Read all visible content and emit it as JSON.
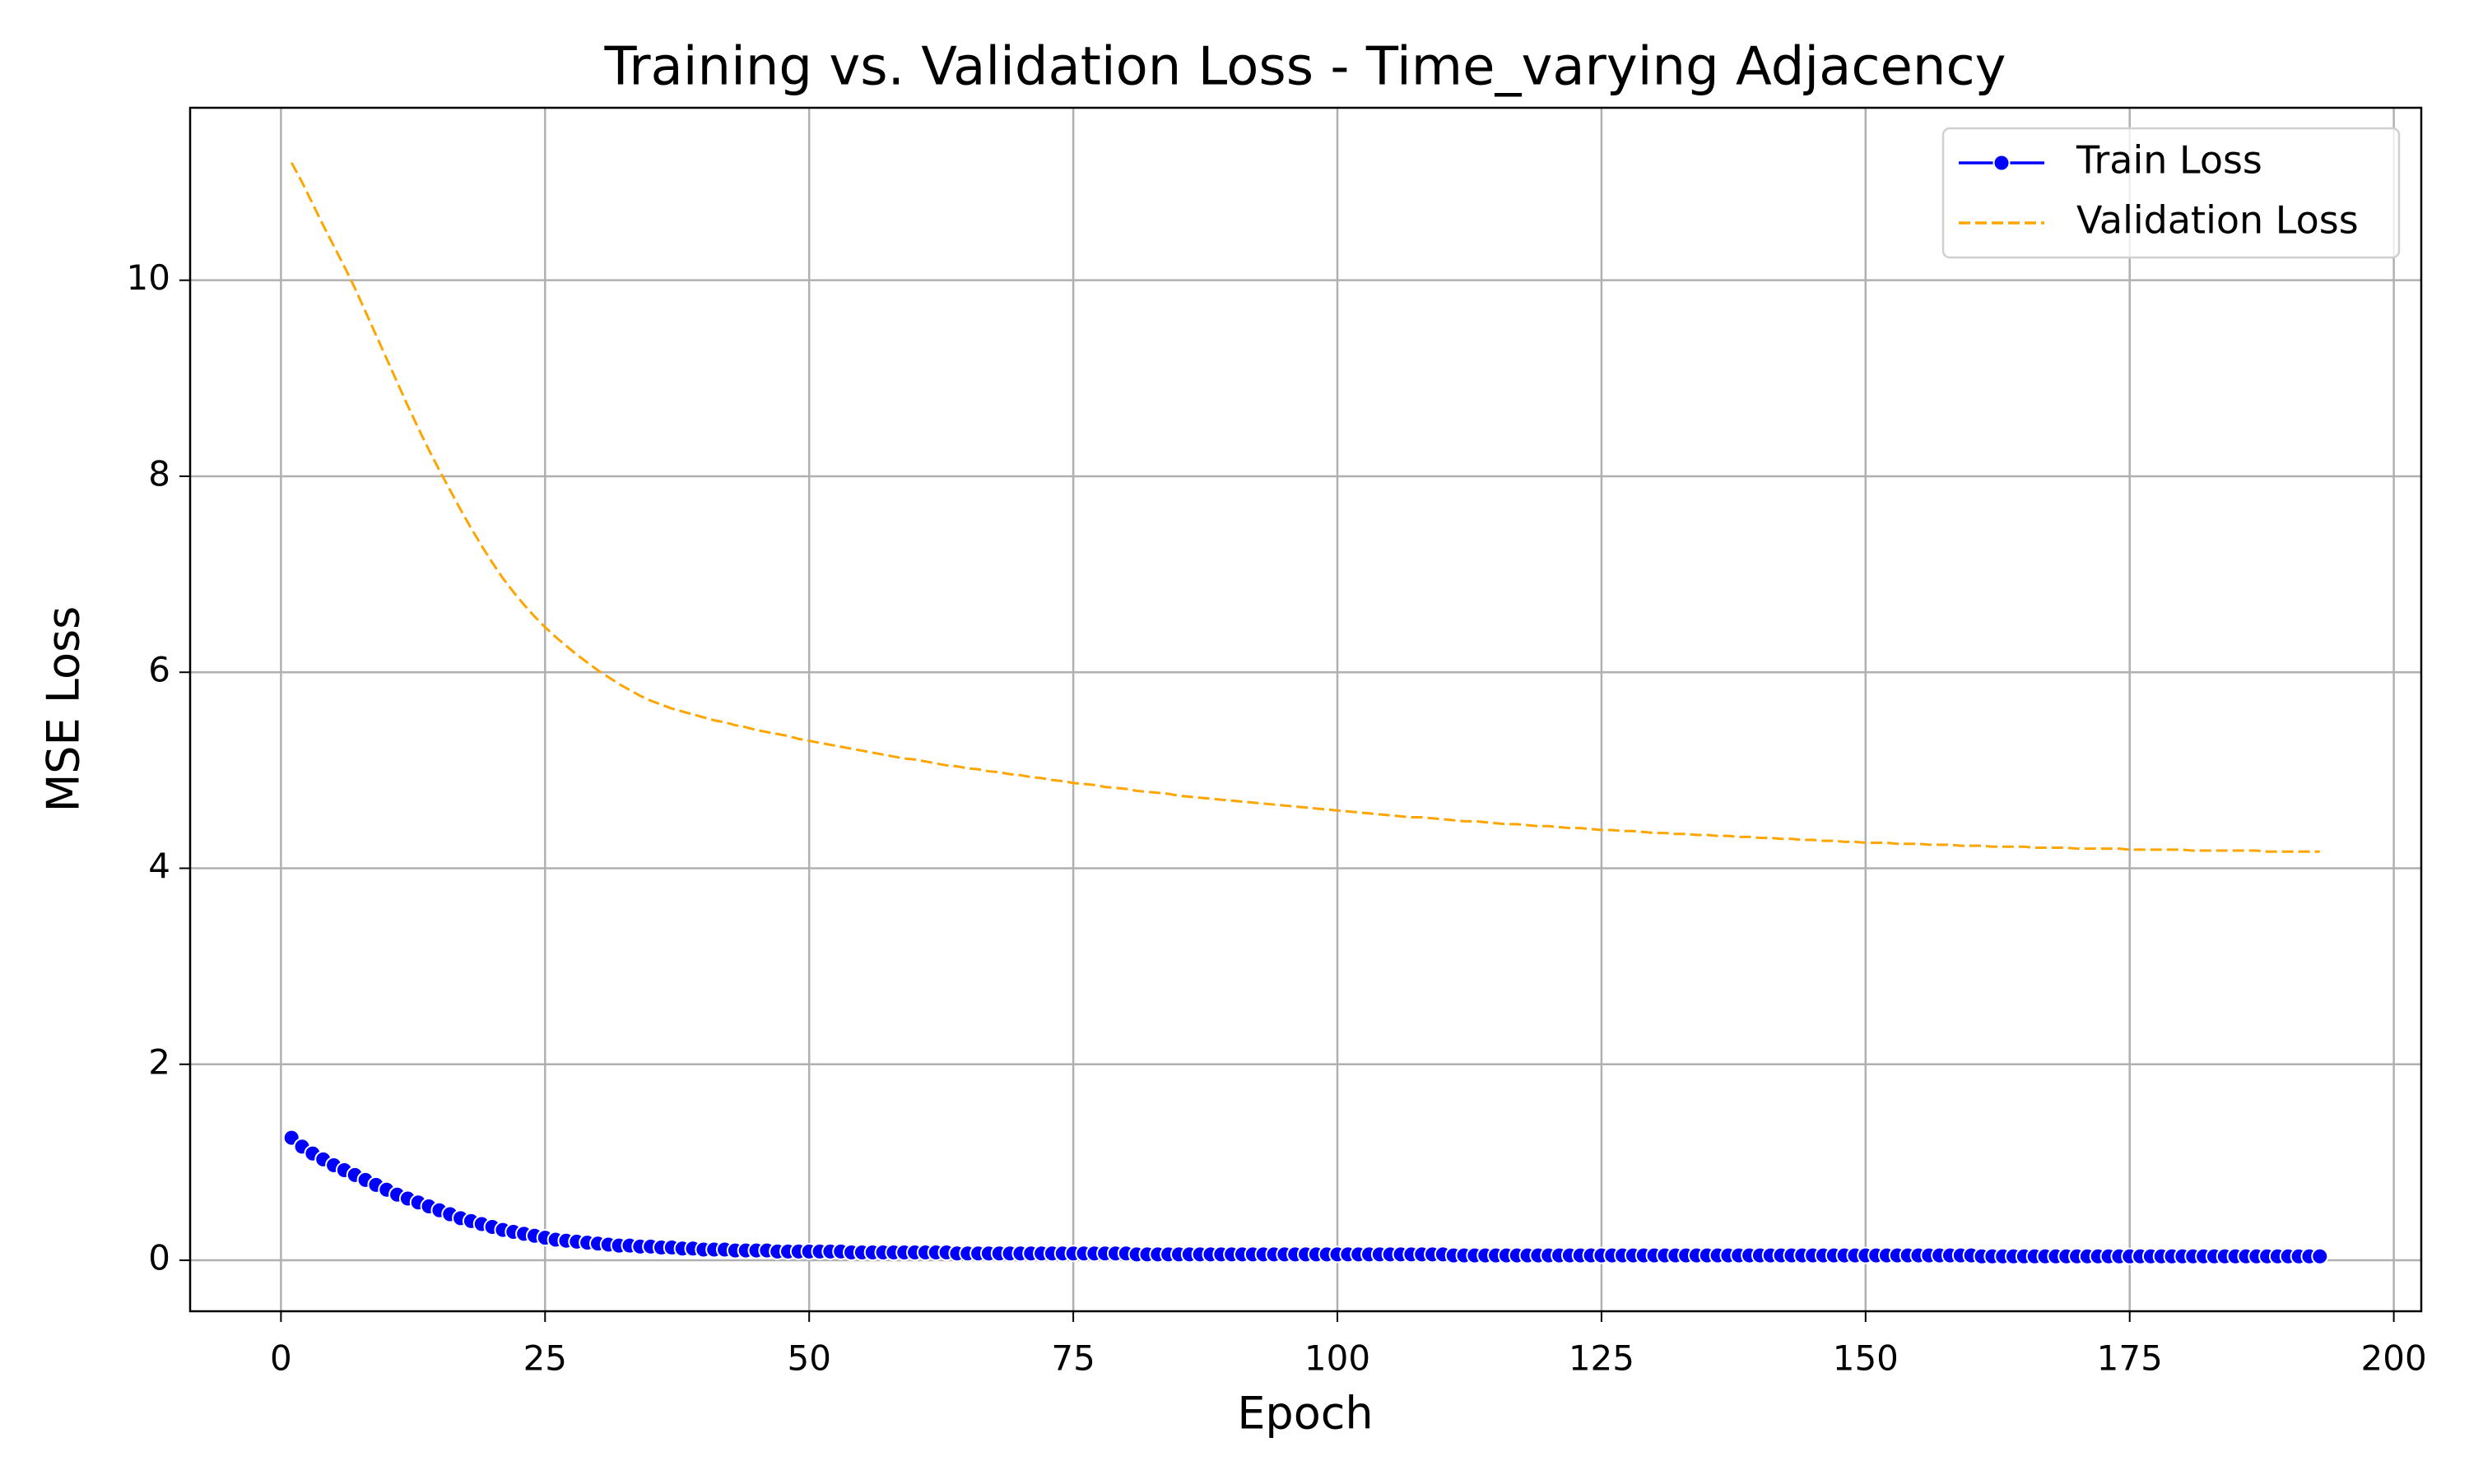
{
  "chart_data": {
    "type": "line",
    "title": "Training vs. Validation Loss - Time_varying Adjacency",
    "xlabel": "Epoch",
    "ylabel": "MSE Loss",
    "x": [
      1,
      2,
      3,
      4,
      5,
      6,
      7,
      8,
      9,
      10,
      11,
      12,
      13,
      14,
      15,
      16,
      17,
      18,
      19,
      20,
      21,
      22,
      23,
      24,
      25,
      26,
      27,
      28,
      29,
      30,
      31,
      32,
      33,
      34,
      35,
      36,
      37,
      38,
      39,
      40,
      41,
      42,
      43,
      44,
      45,
      46,
      47,
      48,
      49,
      50,
      51,
      52,
      53,
      54,
      55,
      56,
      57,
      58,
      59,
      60,
      61,
      62,
      63,
      64,
      65,
      66,
      67,
      68,
      69,
      70,
      71,
      72,
      73,
      74,
      75,
      76,
      77,
      78,
      79,
      80,
      81,
      82,
      83,
      84,
      85,
      86,
      87,
      88,
      89,
      90,
      91,
      92,
      93,
      94,
      95,
      96,
      97,
      98,
      99,
      100,
      101,
      102,
      103,
      104,
      105,
      106,
      107,
      108,
      109,
      110,
      111,
      112,
      113,
      114,
      115,
      116,
      117,
      118,
      119,
      120,
      121,
      122,
      123,
      124,
      125,
      126,
      127,
      128,
      129,
      130,
      131,
      132,
      133,
      134,
      135,
      136,
      137,
      138,
      139,
      140,
      141,
      142,
      143,
      144,
      145,
      146,
      147,
      148,
      149,
      150,
      151,
      152,
      153,
      154,
      155,
      156,
      157,
      158,
      159,
      160,
      161,
      162,
      163,
      164,
      165,
      166,
      167,
      168,
      169,
      170,
      171,
      172,
      173,
      174,
      175,
      176,
      177,
      178,
      179,
      180,
      181,
      182,
      183,
      184,
      185,
      186,
      187,
      188,
      189,
      190,
      191,
      192,
      193
    ],
    "series": [
      {
        "name": "Train Loss",
        "color": "#0000ff",
        "marker": "o",
        "linestyle": "solid",
        "values": [
          1.25,
          1.16,
          1.09,
          1.03,
          0.97,
          0.92,
          0.87,
          0.82,
          0.77,
          0.72,
          0.67,
          0.63,
          0.59,
          0.55,
          0.51,
          0.47,
          0.43,
          0.4,
          0.37,
          0.34,
          0.31,
          0.29,
          0.27,
          0.25,
          0.23,
          0.21,
          0.2,
          0.19,
          0.18,
          0.17,
          0.16,
          0.15,
          0.15,
          0.14,
          0.14,
          0.13,
          0.13,
          0.12,
          0.12,
          0.11,
          0.11,
          0.11,
          0.1,
          0.1,
          0.1,
          0.1,
          0.09,
          0.09,
          0.09,
          0.09,
          0.09,
          0.09,
          0.09,
          0.08,
          0.08,
          0.08,
          0.08,
          0.08,
          0.08,
          0.08,
          0.08,
          0.08,
          0.08,
          0.07,
          0.07,
          0.07,
          0.07,
          0.07,
          0.07,
          0.07,
          0.07,
          0.07,
          0.07,
          0.07,
          0.07,
          0.07,
          0.07,
          0.07,
          0.07,
          0.07,
          0.06,
          0.06,
          0.06,
          0.06,
          0.06,
          0.06,
          0.06,
          0.06,
          0.06,
          0.06,
          0.06,
          0.06,
          0.06,
          0.06,
          0.06,
          0.06,
          0.06,
          0.06,
          0.06,
          0.06,
          0.06,
          0.06,
          0.06,
          0.06,
          0.06,
          0.06,
          0.06,
          0.06,
          0.06,
          0.06,
          0.05,
          0.05,
          0.05,
          0.05,
          0.05,
          0.05,
          0.05,
          0.05,
          0.05,
          0.05,
          0.05,
          0.05,
          0.05,
          0.05,
          0.05,
          0.05,
          0.05,
          0.05,
          0.05,
          0.05,
          0.05,
          0.05,
          0.05,
          0.05,
          0.05,
          0.05,
          0.05,
          0.05,
          0.05,
          0.05,
          0.05,
          0.05,
          0.05,
          0.05,
          0.05,
          0.05,
          0.05,
          0.05,
          0.05,
          0.05,
          0.05,
          0.05,
          0.05,
          0.05,
          0.05,
          0.05,
          0.05,
          0.05,
          0.05,
          0.05,
          0.04,
          0.04,
          0.04,
          0.04,
          0.04,
          0.04,
          0.04,
          0.04,
          0.04,
          0.04,
          0.04,
          0.04,
          0.04,
          0.04,
          0.04,
          0.04,
          0.04,
          0.04,
          0.04,
          0.04,
          0.04,
          0.04,
          0.04,
          0.04,
          0.04,
          0.04,
          0.04,
          0.04,
          0.04,
          0.04,
          0.04,
          0.04,
          0.04
        ]
      },
      {
        "name": "Validation Loss",
        "color": "#ffa500",
        "marker": "none",
        "linestyle": "dashed",
        "values": [
          11.2,
          11.0,
          10.78,
          10.56,
          10.35,
          10.14,
          9.92,
          9.68,
          9.44,
          9.2,
          8.96,
          8.72,
          8.49,
          8.27,
          8.06,
          7.86,
          7.66,
          7.47,
          7.29,
          7.12,
          6.96,
          6.82,
          6.69,
          6.57,
          6.46,
          6.36,
          6.27,
          6.18,
          6.1,
          6.02,
          5.95,
          5.88,
          5.82,
          5.76,
          5.71,
          5.67,
          5.63,
          5.6,
          5.57,
          5.54,
          5.51,
          5.49,
          5.46,
          5.44,
          5.41,
          5.39,
          5.37,
          5.35,
          5.32,
          5.3,
          5.28,
          5.26,
          5.24,
          5.22,
          5.2,
          5.18,
          5.16,
          5.14,
          5.12,
          5.11,
          5.09,
          5.07,
          5.05,
          5.04,
          5.02,
          5.01,
          4.99,
          4.98,
          4.96,
          4.95,
          4.93,
          4.92,
          4.9,
          4.89,
          4.87,
          4.86,
          4.85,
          4.83,
          4.82,
          4.81,
          4.79,
          4.78,
          4.77,
          4.76,
          4.74,
          4.73,
          4.72,
          4.71,
          4.7,
          4.69,
          4.68,
          4.67,
          4.66,
          4.65,
          4.64,
          4.63,
          4.62,
          4.61,
          4.6,
          4.59,
          4.58,
          4.57,
          4.56,
          4.55,
          4.54,
          4.53,
          4.52,
          4.52,
          4.51,
          4.5,
          4.49,
          4.48,
          4.48,
          4.47,
          4.46,
          4.45,
          4.45,
          4.44,
          4.43,
          4.43,
          4.42,
          4.41,
          4.41,
          4.4,
          4.39,
          4.39,
          4.38,
          4.38,
          4.37,
          4.36,
          4.36,
          4.35,
          4.35,
          4.34,
          4.34,
          4.33,
          4.33,
          4.32,
          4.32,
          4.31,
          4.31,
          4.3,
          4.3,
          4.29,
          4.29,
          4.28,
          4.28,
          4.27,
          4.27,
          4.26,
          4.26,
          4.26,
          4.25,
          4.25,
          4.25,
          4.24,
          4.24,
          4.24,
          4.23,
          4.23,
          4.23,
          4.22,
          4.22,
          4.22,
          4.22,
          4.21,
          4.21,
          4.21,
          4.21,
          4.2,
          4.2,
          4.2,
          4.2,
          4.2,
          4.19,
          4.19,
          4.19,
          4.19,
          4.19,
          4.19,
          4.18,
          4.18,
          4.18,
          4.18,
          4.18,
          4.18,
          4.18,
          4.17,
          4.17,
          4.17,
          4.17,
          4.17,
          4.17
        ]
      }
    ],
    "xlim": [
      -8.6,
      202.6
    ],
    "xticks": [
      0,
      25,
      50,
      75,
      100,
      125,
      150,
      175,
      200
    ],
    "ylim": [
      -0.52,
      11.76
    ],
    "yticks": [
      0,
      2,
      4,
      6,
      8,
      10
    ],
    "grid": true,
    "legend": "upper right"
  }
}
